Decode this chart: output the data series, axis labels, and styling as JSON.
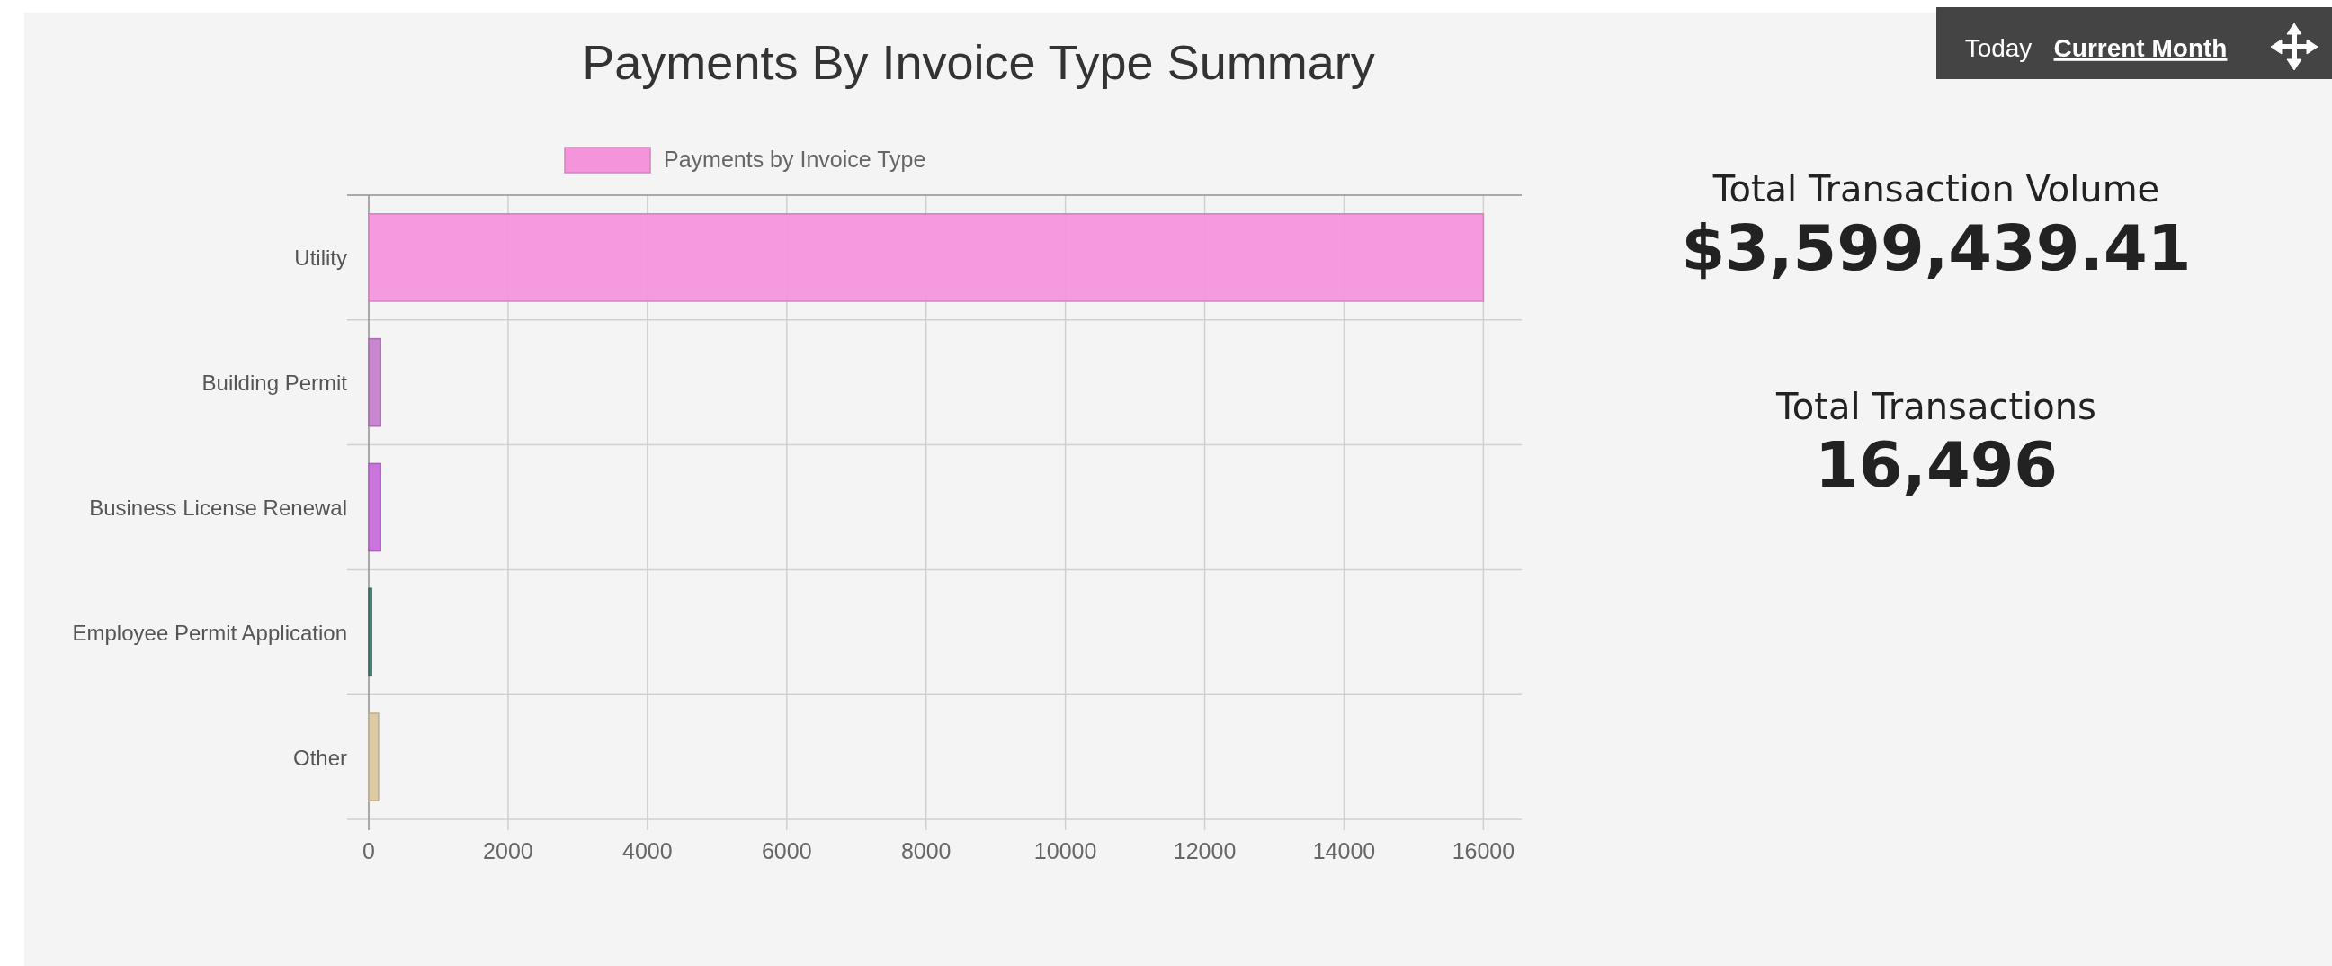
{
  "chart_data": [
    {
      "type": "bar",
      "title": "Payments By Invoice Type Summary",
      "orientation": "horizontal",
      "categories": [
        "Utility",
        "Building Permit",
        "Business License Renewal",
        "Employee Permit Application",
        "Other"
      ],
      "series": [
        {
          "name": "Payments by Invoice Type",
          "color": "#f495dc",
          "colors": [
            "#f495dc",
            "#c47fcb",
            "#c86ddc",
            "#3c7a6a",
            "#d9c9a0"
          ],
          "values": [
            16000,
            170,
            170,
            40,
            140
          ]
        }
      ],
      "xlim": [
        0,
        16550
      ],
      "xticks": [
        0,
        2000,
        4000,
        6000,
        8000,
        10000,
        12000,
        14000,
        16000
      ],
      "grid": true,
      "legend": "top"
    },
    {
      "type": "other",
      "annotations": [
        "Today",
        "Current Month",
        "Total Transaction Volume",
        "$3,599,439.41",
        "Total Transactions",
        "16,496"
      ]
    }
  ]
}
